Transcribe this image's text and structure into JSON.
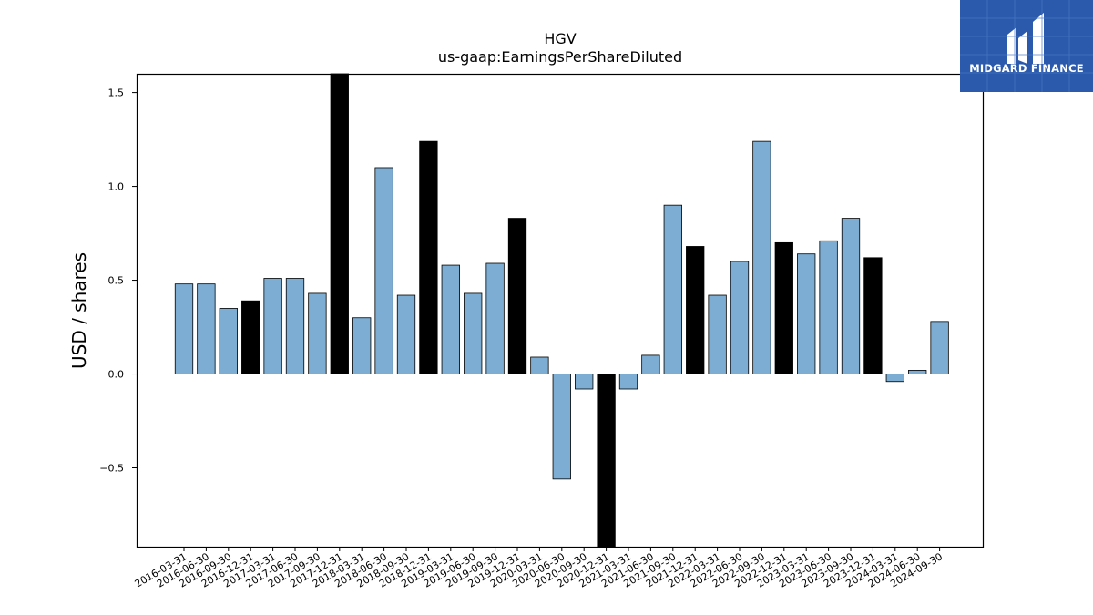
{
  "chart_data": {
    "type": "bar",
    "title": "HGV",
    "subtitle": "us-gaap:EarningsPerShareDiluted",
    "xlabel": "",
    "ylabel": "USD / shares",
    "ylim": [
      -0.92,
      1.6
    ],
    "yticks": [
      -0.5,
      0.0,
      0.5,
      1.0,
      1.5
    ],
    "ytick_labels": [
      "−0.5",
      "0.0",
      "0.5",
      "1.0",
      "1.5"
    ],
    "grid": false,
    "legend": "none",
    "colors": {
      "quarter": "#7eadd3",
      "annual": "#000000",
      "edge": "#000000"
    },
    "categories": [
      "2016-03-31",
      "2016-06-30",
      "2016-09-30",
      "2016-12-31",
      "2017-03-31",
      "2017-06-30",
      "2017-09-30",
      "2017-12-31",
      "2018-03-31",
      "2018-06-30",
      "2018-09-30",
      "2018-12-31",
      "2019-03-31",
      "2019-06-30",
      "2019-09-30",
      "2019-12-31",
      "2020-03-31",
      "2020-06-30",
      "2020-09-30",
      "2020-12-31",
      "2021-03-31",
      "2021-06-30",
      "2021-09-30",
      "2021-12-31",
      "2022-03-31",
      "2022-06-30",
      "2022-09-30",
      "2022-12-31",
      "2023-03-31",
      "2023-06-30",
      "2023-09-30",
      "2023-12-31",
      "2024-03-31",
      "2024-06-30",
      "2024-09-30"
    ],
    "values": [
      0.48,
      0.48,
      0.35,
      0.39,
      0.51,
      0.51,
      0.43,
      1.6,
      0.3,
      1.1,
      0.42,
      1.24,
      0.58,
      0.43,
      0.59,
      0.83,
      0.09,
      -0.56,
      -0.08,
      -0.92,
      -0.08,
      0.1,
      0.9,
      0.68,
      0.42,
      0.6,
      1.24,
      0.7,
      0.64,
      0.71,
      0.83,
      0.62,
      -0.04,
      0.02,
      0.28
    ],
    "annual": [
      false,
      false,
      false,
      true,
      false,
      false,
      false,
      true,
      false,
      false,
      false,
      true,
      false,
      false,
      false,
      true,
      false,
      false,
      false,
      true,
      false,
      false,
      false,
      true,
      false,
      false,
      false,
      true,
      false,
      false,
      false,
      true,
      false,
      false,
      false
    ]
  },
  "logo": {
    "text": "MIDGARD FINANCE",
    "background": "#2b5aad"
  }
}
